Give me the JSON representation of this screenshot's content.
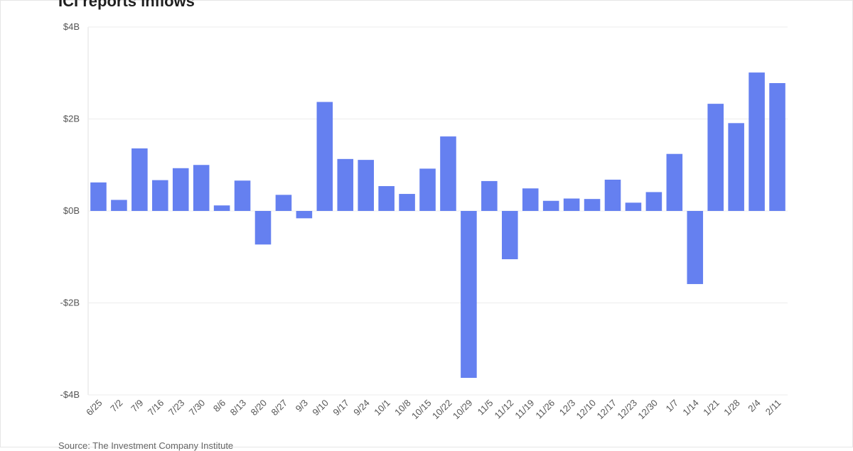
{
  "chart_data": {
    "type": "bar",
    "title": "ICI reports inflows",
    "source": "Source: The Investment Company Institute",
    "bar_color": "#6580f0",
    "ylim": [
      -4,
      4
    ],
    "y_ticks": [
      {
        "value": 4,
        "label": "$4B"
      },
      {
        "value": 2,
        "label": "$2B"
      },
      {
        "value": 0,
        "label": "$0B"
      },
      {
        "value": -2,
        "label": "-$2B"
      },
      {
        "value": -4,
        "label": "-$4B"
      }
    ],
    "grid": true,
    "categories": [
      "6/25",
      "7/2",
      "7/9",
      "7/16",
      "7/23",
      "7/30",
      "8/6",
      "8/13",
      "8/20",
      "8/27",
      "9/3",
      "9/10",
      "9/17",
      "9/24",
      "10/1",
      "10/8",
      "10/15",
      "10/22",
      "10/29",
      "11/5",
      "11/12",
      "11/19",
      "11/26",
      "12/3",
      "12/10",
      "12/17",
      "12/23",
      "12/30",
      "1/7",
      "1/14",
      "1/21",
      "1/28",
      "2/4",
      "2/11"
    ],
    "values": [
      0.62,
      0.24,
      1.36,
      0.67,
      0.93,
      1.0,
      0.12,
      0.66,
      -0.73,
      0.35,
      -0.16,
      2.37,
      1.13,
      1.11,
      0.54,
      0.37,
      0.92,
      1.62,
      -3.63,
      0.65,
      -1.05,
      0.49,
      0.22,
      0.27,
      0.26,
      0.68,
      0.18,
      0.41,
      1.24,
      -1.59,
      2.33,
      1.91,
      3.01,
      2.78
    ]
  }
}
